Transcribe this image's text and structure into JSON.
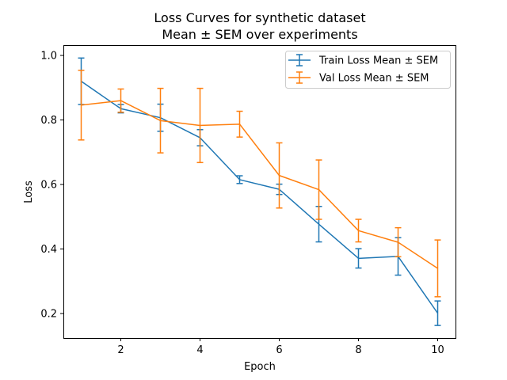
{
  "chart_data": {
    "type": "line",
    "title": "Loss Curves for synthetic dataset",
    "subtitle": "Mean ± SEM over experiments",
    "xlabel": "Epoch",
    "ylabel": "Loss",
    "xlim": [
      0.55,
      10.45
    ],
    "ylim": [
      0.124,
      1.032
    ],
    "x_ticks": [
      2,
      4,
      6,
      8,
      10
    ],
    "y_ticks": [
      0.2,
      0.4,
      0.6,
      0.8,
      1.0
    ],
    "y_tick_labels": [
      "0.2",
      "0.4",
      "0.6",
      "0.8",
      "1.0"
    ],
    "grid": false,
    "legend_position": "top-right",
    "x": [
      1,
      2,
      3,
      4,
      5,
      6,
      7,
      8,
      9,
      10
    ],
    "series": [
      {
        "name": "Train Loss Mean ± SEM",
        "color": "#1f77b4",
        "values": [
          0.92,
          0.835,
          0.807,
          0.745,
          0.615,
          0.585,
          0.477,
          0.371,
          0.377,
          0.201
        ],
        "errors": [
          0.072,
          0.013,
          0.042,
          0.025,
          0.012,
          0.016,
          0.055,
          0.03,
          0.058,
          0.038
        ]
      },
      {
        "name": "Val Loss Mean ± SEM",
        "color": "#ff7f0e",
        "values": [
          0.846,
          0.86,
          0.798,
          0.783,
          0.787,
          0.628,
          0.584,
          0.457,
          0.421,
          0.34
        ],
        "errors": [
          0.108,
          0.036,
          0.1,
          0.115,
          0.04,
          0.101,
          0.092,
          0.035,
          0.045,
          0.088
        ]
      }
    ]
  }
}
